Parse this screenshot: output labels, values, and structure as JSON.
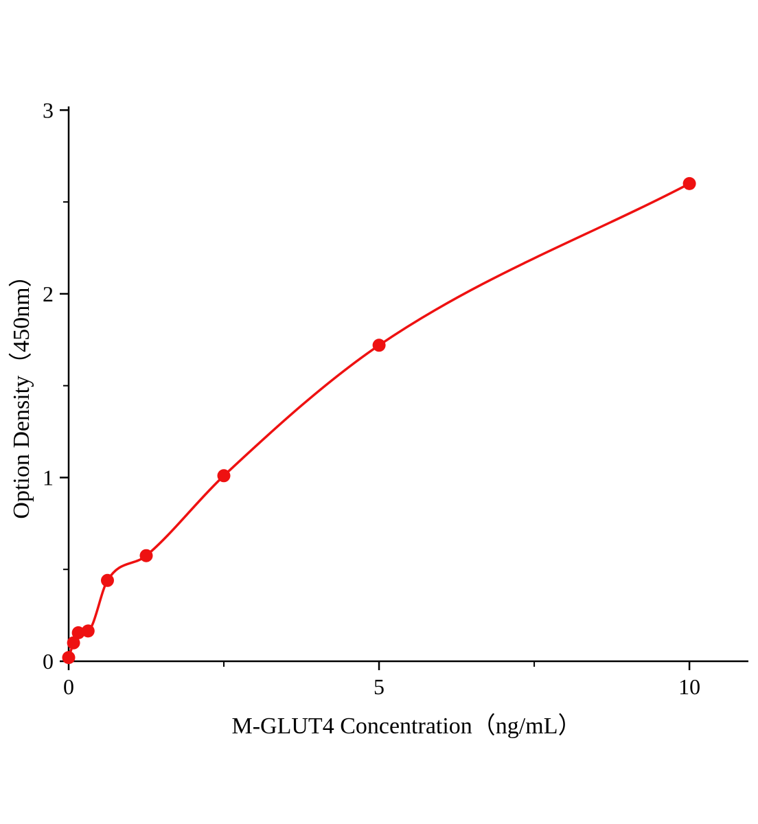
{
  "figure": {
    "background": "#ffffff"
  },
  "chart_data": {
    "type": "scatter",
    "subtype": "standard-curve-with-fit-line",
    "title": "",
    "xlabel": "M-GLUT4 Concentration（ng/mL）",
    "ylabel": "Option Density（450nm）",
    "x": [
      0,
      0.078,
      0.156,
      0.3125,
      0.625,
      1.25,
      2.5,
      5,
      10
    ],
    "y": [
      0.02,
      0.1,
      0.155,
      0.165,
      0.44,
      0.575,
      1.01,
      1.72,
      2.6
    ],
    "xlim": [
      0,
      10.95
    ],
    "ylim": [
      0,
      3.02
    ],
    "x_major_ticks": [
      0,
      5,
      10
    ],
    "x_tick_labels": [
      "0",
      "5",
      "10"
    ],
    "x_minor_ticks": [
      2.5,
      7.5
    ],
    "y_major_ticks": [
      0,
      1,
      2,
      3
    ],
    "y_tick_labels": [
      "0",
      "1",
      "2",
      "3"
    ],
    "y_minor_ticks": [
      0.5,
      1.5,
      2.5
    ],
    "grid": false,
    "legend": null,
    "line_color": "#ee1111",
    "marker_color": "#ee1111",
    "axis_color": "#000000",
    "marker_radius": 9.5,
    "line_width": 3.5
  }
}
